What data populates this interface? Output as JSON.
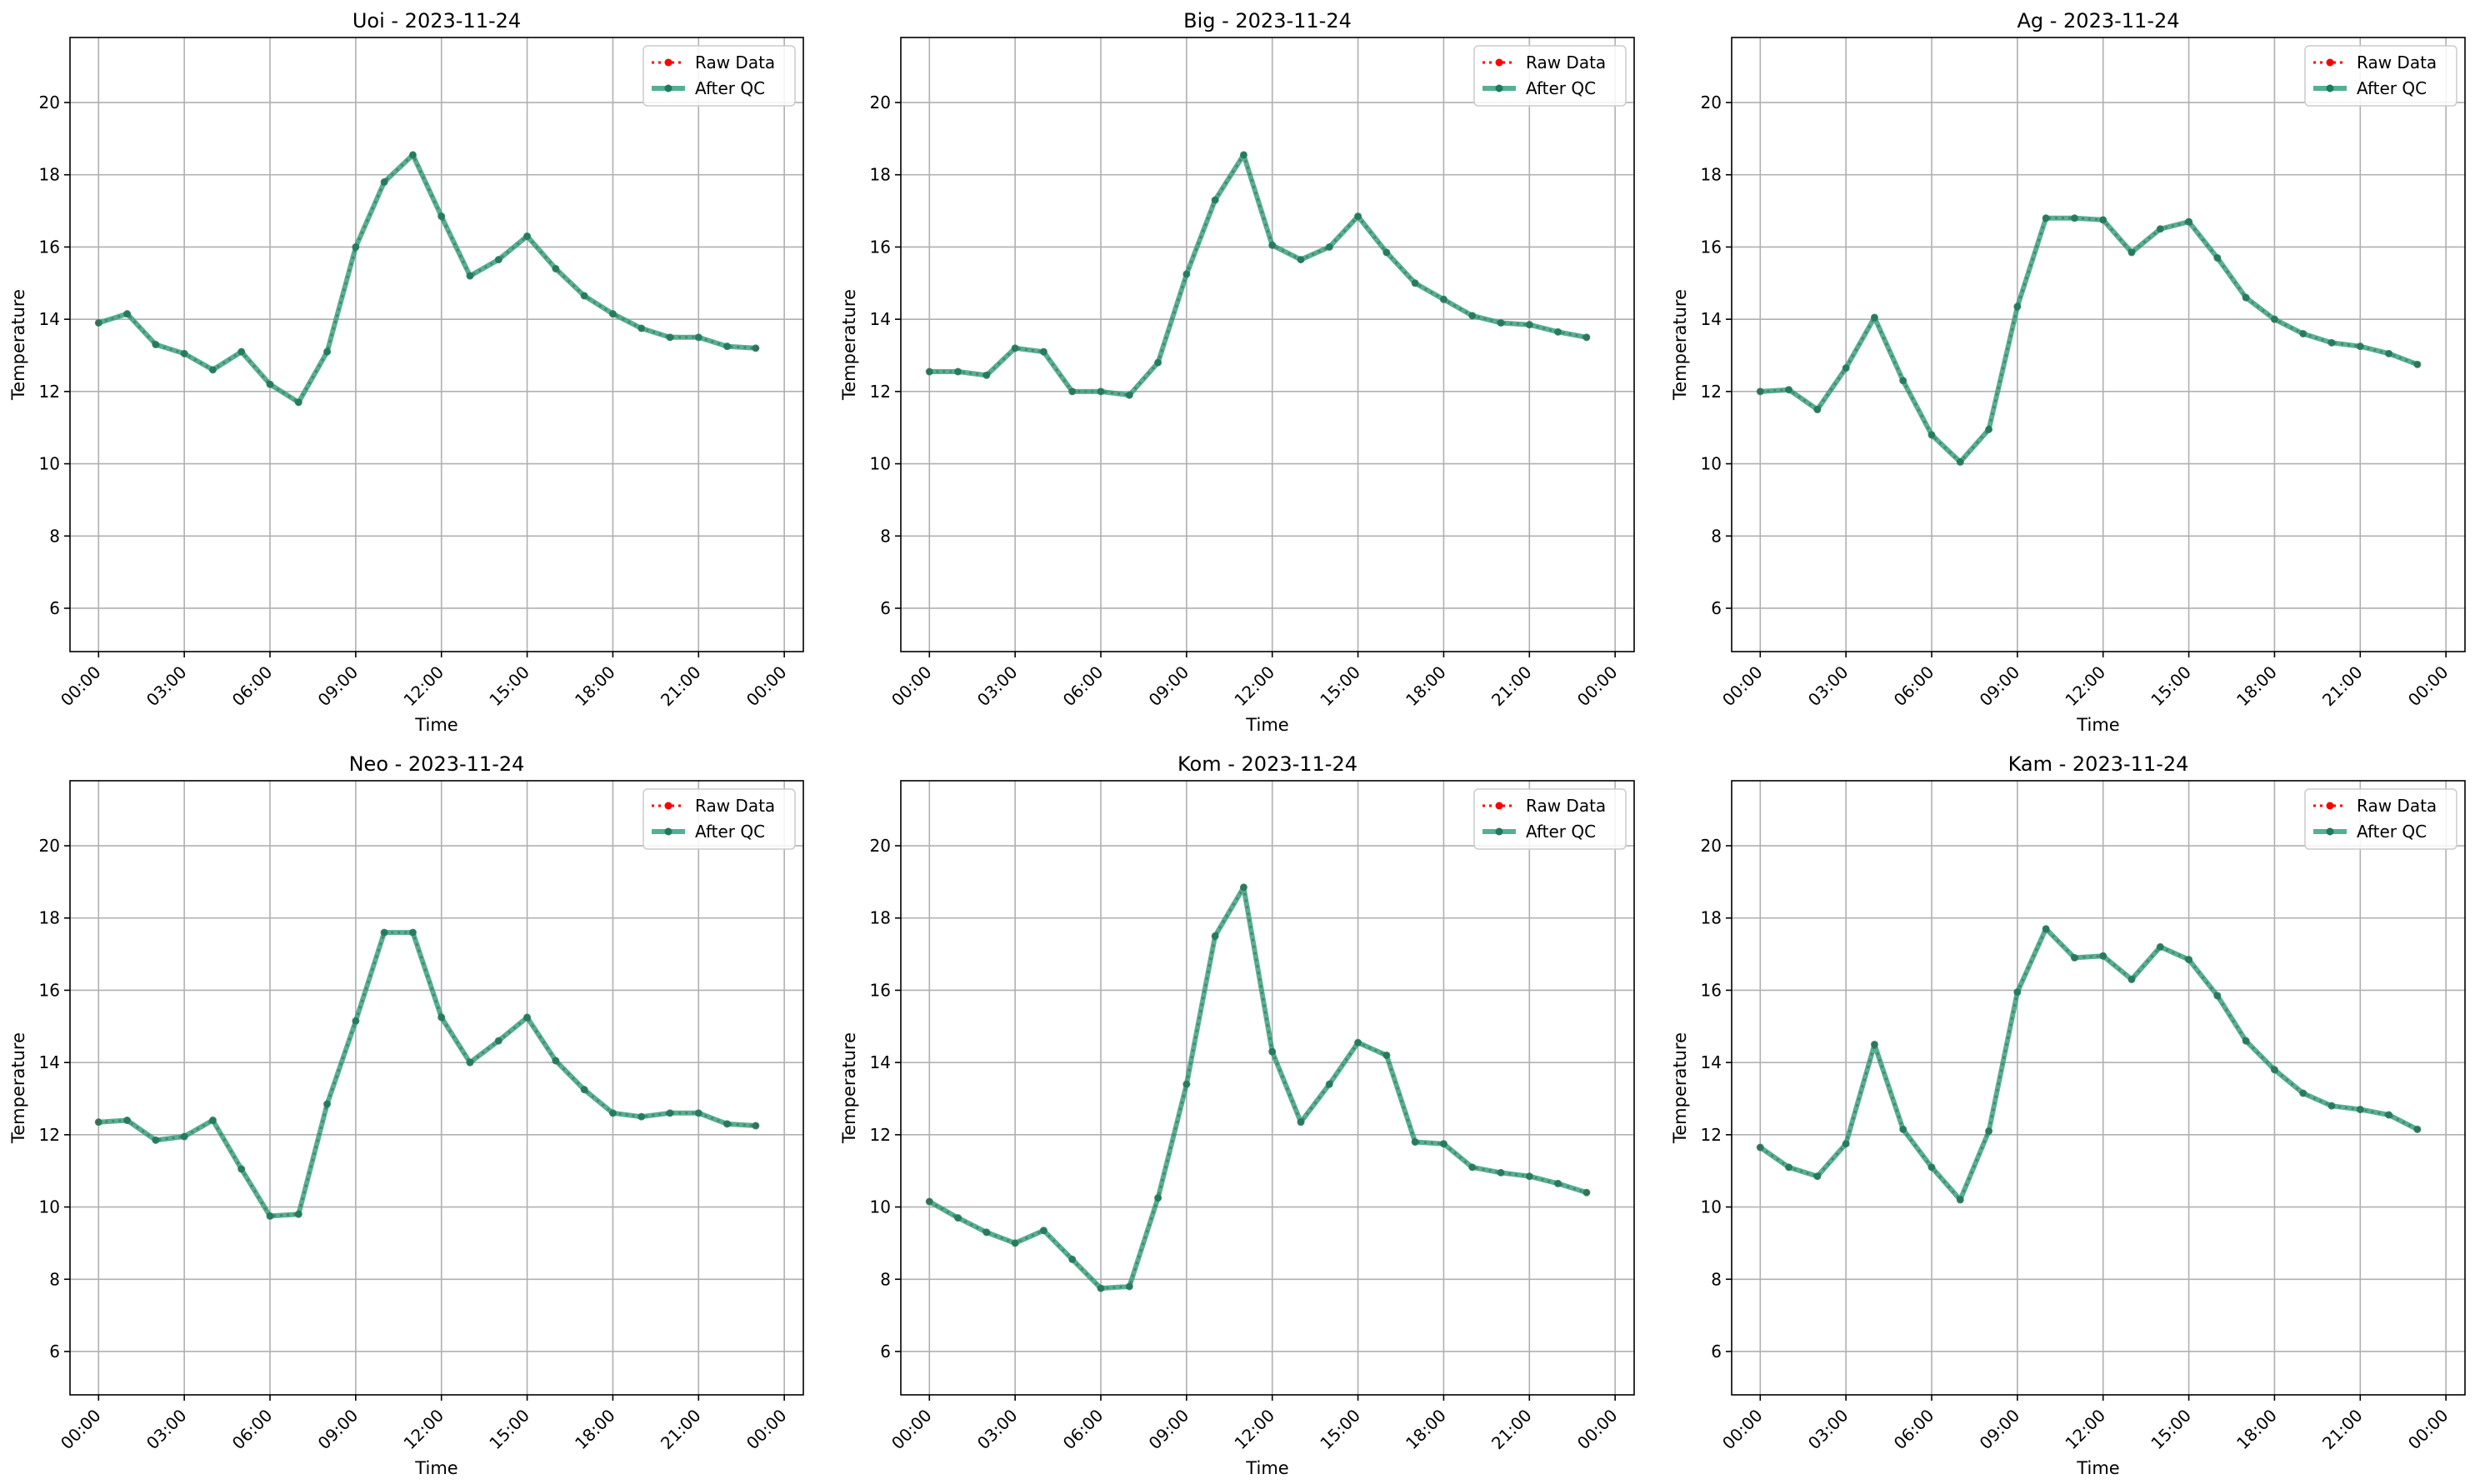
{
  "chart_data": [
    {
      "type": "line",
      "title": "Uoi - 2023-11-24",
      "xlabel": "Time",
      "ylabel": "Temperature",
      "xlim": [
        "23:00",
        "00:40"
      ],
      "ylim": [
        4.8,
        21.8
      ],
      "xticks": [
        "00:00",
        "03:00",
        "06:00",
        "09:00",
        "12:00",
        "15:00",
        "18:00",
        "21:00",
        "00:00"
      ],
      "yticks": [
        "6",
        "8",
        "10",
        "12",
        "14",
        "16",
        "18",
        "20"
      ],
      "x": [
        "00:00",
        "01:00",
        "02:00",
        "03:00",
        "04:00",
        "05:00",
        "06:00",
        "07:00",
        "08:00",
        "09:00",
        "10:00",
        "11:00",
        "12:00",
        "13:00",
        "14:00",
        "15:00",
        "16:00",
        "17:00",
        "18:00",
        "19:00",
        "20:00",
        "21:00",
        "22:00",
        "23:00"
      ],
      "grid": true,
      "legend_position": "top-right",
      "series": [
        {
          "name": "Raw Data",
          "color": "#ff0000",
          "values": [
            13.9,
            14.15,
            13.3,
            13.05,
            12.6,
            13.1,
            12.2,
            11.7,
            13.1,
            16.0,
            17.8,
            18.55,
            16.85,
            15.2,
            15.65,
            16.3,
            15.4,
            14.65,
            14.15,
            13.75,
            13.5,
            13.5,
            13.25,
            13.2
          ]
        },
        {
          "name": "After QC",
          "color": "#2a9d78",
          "values": [
            13.9,
            14.15,
            13.3,
            13.05,
            12.6,
            13.1,
            12.2,
            11.7,
            13.1,
            16.0,
            17.8,
            18.55,
            16.85,
            15.2,
            15.65,
            16.3,
            15.4,
            14.65,
            14.15,
            13.75,
            13.5,
            13.5,
            13.25,
            13.2
          ]
        }
      ]
    },
    {
      "type": "line",
      "title": "Big - 2023-11-24",
      "xlabel": "Time",
      "ylabel": "Temperature",
      "xlim": [
        "23:00",
        "00:40"
      ],
      "ylim": [
        4.8,
        21.8
      ],
      "xticks": [
        "00:00",
        "03:00",
        "06:00",
        "09:00",
        "12:00",
        "15:00",
        "18:00",
        "21:00",
        "00:00"
      ],
      "yticks": [
        "6",
        "8",
        "10",
        "12",
        "14",
        "16",
        "18",
        "20"
      ],
      "x": [
        "00:00",
        "01:00",
        "02:00",
        "03:00",
        "04:00",
        "05:00",
        "06:00",
        "07:00",
        "08:00",
        "09:00",
        "10:00",
        "11:00",
        "12:00",
        "13:00",
        "14:00",
        "15:00",
        "16:00",
        "17:00",
        "18:00",
        "19:00",
        "20:00",
        "21:00",
        "22:00",
        "23:00"
      ],
      "grid": true,
      "legend_position": "top-right",
      "series": [
        {
          "name": "Raw Data",
          "color": "#ff0000",
          "values": [
            12.55,
            12.55,
            12.45,
            13.2,
            13.1,
            12.0,
            12.0,
            11.9,
            12.8,
            15.25,
            17.3,
            18.55,
            16.05,
            15.65,
            16.0,
            16.85,
            15.85,
            15.0,
            14.55,
            14.1,
            13.9,
            13.85,
            13.65,
            13.5
          ]
        },
        {
          "name": "After QC",
          "color": "#2a9d78",
          "values": [
            12.55,
            12.55,
            12.45,
            13.2,
            13.1,
            12.0,
            12.0,
            11.9,
            12.8,
            15.25,
            17.3,
            18.55,
            16.05,
            15.65,
            16.0,
            16.85,
            15.85,
            15.0,
            14.55,
            14.1,
            13.9,
            13.85,
            13.65,
            13.5
          ]
        }
      ]
    },
    {
      "type": "line",
      "title": "Ag - 2023-11-24",
      "xlabel": "Time",
      "ylabel": "Temperature",
      "xlim": [
        "23:00",
        "00:40"
      ],
      "ylim": [
        4.8,
        21.8
      ],
      "xticks": [
        "00:00",
        "03:00",
        "06:00",
        "09:00",
        "12:00",
        "15:00",
        "18:00",
        "21:00",
        "00:00"
      ],
      "yticks": [
        "6",
        "8",
        "10",
        "12",
        "14",
        "16",
        "18",
        "20"
      ],
      "x": [
        "00:00",
        "01:00",
        "02:00",
        "03:00",
        "04:00",
        "05:00",
        "06:00",
        "07:00",
        "08:00",
        "09:00",
        "10:00",
        "11:00",
        "12:00",
        "13:00",
        "14:00",
        "15:00",
        "16:00",
        "17:00",
        "18:00",
        "19:00",
        "20:00",
        "21:00",
        "22:00",
        "23:00"
      ],
      "grid": true,
      "legend_position": "top-right",
      "series": [
        {
          "name": "Raw Data",
          "color": "#ff0000",
          "values": [
            12.0,
            12.05,
            11.5,
            12.65,
            14.05,
            12.3,
            10.8,
            10.05,
            10.95,
            14.35,
            16.8,
            16.8,
            16.75,
            15.85,
            16.5,
            16.7,
            15.7,
            14.6,
            14.0,
            13.6,
            13.35,
            13.25,
            13.05,
            12.75
          ]
        },
        {
          "name": "After QC",
          "color": "#2a9d78",
          "values": [
            12.0,
            12.05,
            11.5,
            12.65,
            14.05,
            12.3,
            10.8,
            10.05,
            10.95,
            14.35,
            16.8,
            16.8,
            16.75,
            15.85,
            16.5,
            16.7,
            15.7,
            14.6,
            14.0,
            13.6,
            13.35,
            13.25,
            13.05,
            12.75
          ]
        }
      ]
    },
    {
      "type": "line",
      "title": "Neo - 2023-11-24",
      "xlabel": "Time",
      "ylabel": "Temperature",
      "xlim": [
        "23:00",
        "00:40"
      ],
      "ylim": [
        4.8,
        21.8
      ],
      "xticks": [
        "00:00",
        "03:00",
        "06:00",
        "09:00",
        "12:00",
        "15:00",
        "18:00",
        "21:00",
        "00:00"
      ],
      "yticks": [
        "6",
        "8",
        "10",
        "12",
        "14",
        "16",
        "18",
        "20"
      ],
      "x": [
        "00:00",
        "01:00",
        "02:00",
        "03:00",
        "04:00",
        "05:00",
        "06:00",
        "07:00",
        "08:00",
        "09:00",
        "10:00",
        "11:00",
        "12:00",
        "13:00",
        "14:00",
        "15:00",
        "16:00",
        "17:00",
        "18:00",
        "19:00",
        "20:00",
        "21:00",
        "22:00",
        "23:00"
      ],
      "grid": true,
      "legend_position": "top-right",
      "series": [
        {
          "name": "Raw Data",
          "color": "#ff0000",
          "values": [
            12.35,
            12.4,
            11.85,
            11.95,
            12.4,
            11.05,
            9.75,
            9.8,
            12.85,
            15.15,
            17.6,
            17.6,
            15.25,
            14.0,
            14.6,
            15.25,
            14.05,
            13.25,
            12.6,
            12.5,
            12.6,
            12.6,
            12.3,
            12.25
          ]
        },
        {
          "name": "After QC",
          "color": "#2a9d78",
          "values": [
            12.35,
            12.4,
            11.85,
            11.95,
            12.4,
            11.05,
            9.75,
            9.8,
            12.85,
            15.15,
            17.6,
            17.6,
            15.25,
            14.0,
            14.6,
            15.25,
            14.05,
            13.25,
            12.6,
            12.5,
            12.6,
            12.6,
            12.3,
            12.25
          ]
        }
      ]
    },
    {
      "type": "line",
      "title": "Kom - 2023-11-24",
      "xlabel": "Time",
      "ylabel": "Temperature",
      "xlim": [
        "23:00",
        "00:40"
      ],
      "ylim": [
        4.8,
        21.8
      ],
      "xticks": [
        "00:00",
        "03:00",
        "06:00",
        "09:00",
        "12:00",
        "15:00",
        "18:00",
        "21:00",
        "00:00"
      ],
      "yticks": [
        "6",
        "8",
        "10",
        "12",
        "14",
        "16",
        "18",
        "20"
      ],
      "x": [
        "00:00",
        "01:00",
        "02:00",
        "03:00",
        "04:00",
        "05:00",
        "06:00",
        "07:00",
        "08:00",
        "09:00",
        "10:00",
        "11:00",
        "12:00",
        "13:00",
        "14:00",
        "15:00",
        "16:00",
        "17:00",
        "18:00",
        "19:00",
        "20:00",
        "21:00",
        "22:00",
        "23:00"
      ],
      "grid": true,
      "legend_position": "top-right",
      "series": [
        {
          "name": "Raw Data",
          "color": "#ff0000",
          "values": [
            10.15,
            9.7,
            9.3,
            9.0,
            9.35,
            8.55,
            7.75,
            7.8,
            10.25,
            13.4,
            17.5,
            18.85,
            14.3,
            12.35,
            13.4,
            14.55,
            14.2,
            11.8,
            11.75,
            11.1,
            10.95,
            10.85,
            10.65,
            10.4
          ]
        },
        {
          "name": "After QC",
          "color": "#2a9d78",
          "values": [
            10.15,
            9.7,
            9.3,
            9.0,
            9.35,
            8.55,
            7.75,
            7.8,
            10.25,
            13.4,
            17.5,
            18.85,
            14.3,
            12.35,
            13.4,
            14.55,
            14.2,
            11.8,
            11.75,
            11.1,
            10.95,
            10.85,
            10.65,
            10.4
          ]
        }
      ]
    },
    {
      "type": "line",
      "title": "Kam - 2023-11-24",
      "xlabel": "Time",
      "ylabel": "Temperature",
      "xlim": [
        "23:00",
        "00:40"
      ],
      "ylim": [
        4.8,
        21.8
      ],
      "xticks": [
        "00:00",
        "03:00",
        "06:00",
        "09:00",
        "12:00",
        "15:00",
        "18:00",
        "21:00",
        "00:00"
      ],
      "yticks": [
        "6",
        "8",
        "10",
        "12",
        "14",
        "16",
        "18",
        "20"
      ],
      "x": [
        "00:00",
        "01:00",
        "02:00",
        "03:00",
        "04:00",
        "05:00",
        "06:00",
        "07:00",
        "08:00",
        "09:00",
        "10:00",
        "11:00",
        "12:00",
        "13:00",
        "14:00",
        "15:00",
        "16:00",
        "17:00",
        "18:00",
        "19:00",
        "20:00",
        "21:00",
        "22:00",
        "23:00"
      ],
      "grid": true,
      "legend_position": "top-right",
      "series": [
        {
          "name": "Raw Data",
          "color": "#ff0000",
          "values": [
            11.65,
            11.1,
            10.85,
            11.75,
            14.5,
            12.15,
            11.1,
            10.2,
            12.1,
            15.95,
            17.7,
            16.9,
            16.95,
            16.3,
            17.2,
            16.85,
            15.85,
            14.6,
            13.8,
            13.15,
            12.8,
            12.7,
            12.55,
            12.15
          ]
        },
        {
          "name": "After QC",
          "color": "#2a9d78",
          "values": [
            11.65,
            11.1,
            10.85,
            11.75,
            14.5,
            12.15,
            11.1,
            10.2,
            12.1,
            15.95,
            17.7,
            16.9,
            16.95,
            16.3,
            17.2,
            16.85,
            15.85,
            14.6,
            13.8,
            13.15,
            12.8,
            12.7,
            12.55,
            12.15
          ]
        }
      ]
    }
  ]
}
